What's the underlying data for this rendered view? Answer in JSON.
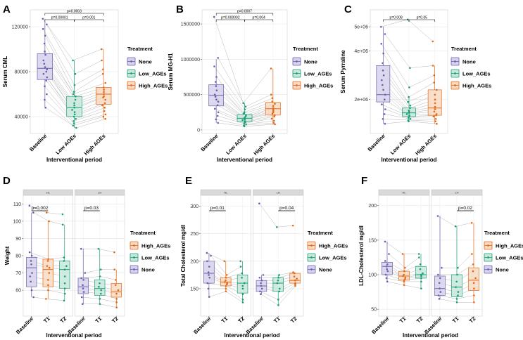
{
  "colors": {
    "None": "#6a5fb0",
    "Low_AGEs": "#1a9e77",
    "High_AGEs": "#e56a17",
    "None_fill": "#d6d2ec",
    "Low_AGEs_fill": "#c8e8dd",
    "High_AGEs_fill": "#f9d9c2"
  },
  "legend": {
    "title": "Treatment",
    "top_order": [
      "None",
      "Low_AGEs",
      "High_AGEs"
    ],
    "bottom_order": [
      "High_AGEs",
      "Low_AGEs",
      "None"
    ]
  },
  "chart_data": [
    {
      "panel": "A",
      "type": "box",
      "title": "",
      "xlabel": "Interventional period",
      "ylabel": "Serum CML",
      "categories": [
        "Baseline",
        "Low AGEs",
        "High AGEs"
      ],
      "groups": [
        "None",
        "Low_AGEs",
        "High_AGEs"
      ],
      "ylim": [
        25000,
        135000
      ],
      "yticks": [
        40000,
        80000,
        120000
      ],
      "ytick_labels": [
        "40000",
        "80000",
        "120000"
      ],
      "boxes": [
        [
          48000,
          73000,
          83000,
          96000,
          127000
        ],
        [
          30000,
          40000,
          48000,
          58000,
          90000
        ],
        [
          38000,
          51000,
          60000,
          66000,
          100000
        ]
      ],
      "points": [
        [
          127000,
          122000,
          118000,
          112000,
          105000,
          98000,
          95000,
          90000,
          87000,
          84000,
          82000,
          80000,
          78000,
          75000,
          72000,
          67000,
          60000,
          55000,
          48000
        ],
        [
          90000,
          78000,
          68000,
          62000,
          60000,
          58000,
          55000,
          52000,
          50000,
          48000,
          46000,
          44000,
          42000,
          40000,
          38000,
          36000,
          34000,
          32000,
          30000
        ],
        [
          100000,
          90000,
          82000,
          78000,
          70000,
          66000,
          64000,
          62000,
          60000,
          58000,
          57000,
          55000,
          52000,
          50000,
          48000,
          45000,
          42000,
          40000,
          38000
        ]
      ],
      "brackets": [
        {
          "from": 0,
          "to": 2,
          "label": "p=0.0003"
        },
        {
          "from": 0,
          "to": 1,
          "label": "p=0.00001"
        },
        {
          "from": 1,
          "to": 2,
          "label": "p=0.001"
        }
      ]
    },
    {
      "panel": "B",
      "type": "box",
      "title": "",
      "xlabel": "Interventional period",
      "ylabel": "Serum MG-H1",
      "categories": [
        "Baseline",
        "Low AGEs",
        "High AGEs"
      ],
      "groups": [
        "None",
        "Low_AGEs",
        "High_AGEs"
      ],
      "ylim": [
        -50000,
        1700000
      ],
      "yticks": [
        0,
        500000,
        1000000,
        1500000
      ],
      "ytick_labels": [
        "0",
        "500000",
        "1000000",
        "1500000"
      ],
      "boxes": [
        [
          100000,
          340000,
          490000,
          640000,
          1000000
        ],
        [
          50000,
          120000,
          165000,
          220000,
          380000
        ],
        [
          80000,
          210000,
          300000,
          390000,
          870000
        ]
      ],
      "points": [
        [
          1600000,
          1020000,
          900000,
          750000,
          680000,
          620000,
          560000,
          500000,
          470000,
          430000,
          400000,
          350000,
          300000,
          250000,
          200000,
          150000,
          100000
        ],
        [
          380000,
          330000,
          290000,
          250000,
          230000,
          210000,
          190000,
          175000,
          160000,
          150000,
          140000,
          125000,
          110000,
          95000,
          80000,
          65000,
          50000
        ],
        [
          870000,
          500000,
          450000,
          400000,
          370000,
          340000,
          310000,
          290000,
          270000,
          250000,
          230000,
          210000,
          190000,
          160000,
          130000,
          100000,
          80000
        ]
      ],
      "brackets": [
        {
          "from": 0,
          "to": 2,
          "label": "p=0.0007"
        },
        {
          "from": 0,
          "to": 1,
          "label": "p=0.000002"
        },
        {
          "from": 1,
          "to": 2,
          "label": "p=0.004"
        }
      ]
    },
    {
      "panel": "C",
      "type": "box",
      "title": "",
      "xlabel": "Interventional period",
      "ylabel": "Serum Pyrraline",
      "categories": [
        "Baseline",
        "Low AGEs",
        "High AGEs"
      ],
      "groups": [
        "None",
        "Low_AGEs",
        "High_AGEs"
      ],
      "ylim": [
        600000,
        5700000
      ],
      "yticks": [
        2000000,
        4000000,
        5000000
      ],
      "ytick_labels": [
        "2e+06",
        "4e+06",
        "5e+06"
      ],
      "boxes": [
        [
          1000000,
          1900000,
          2200000,
          3400000,
          5000000
        ],
        [
          1100000,
          1300000,
          1450000,
          1650000,
          2100000
        ],
        [
          1000000,
          1350000,
          1650000,
          2400000,
          3400000
        ]
      ],
      "points": [
        [
          5000000,
          4700000,
          4300000,
          3900000,
          3500000,
          3200000,
          3000000,
          2800000,
          2600000,
          2400000,
          2200000,
          2000000,
          1800000,
          1600000,
          1400000,
          1200000,
          1000000
        ],
        [
          5300000,
          3300000,
          2500000,
          2100000,
          1900000,
          1750000,
          1650000,
          1550000,
          1500000,
          1450000,
          1400000,
          1350000,
          1300000,
          1250000,
          1200000,
          1150000,
          1100000
        ],
        [
          4400000,
          3400000,
          3000000,
          2700000,
          2400000,
          2200000,
          2000000,
          1850000,
          1700000,
          1600000,
          1500000,
          1400000,
          1350000,
          1300000,
          1200000,
          1100000,
          1000000
        ]
      ],
      "brackets": [
        {
          "from": 0,
          "to": 1,
          "label": "p=0.008"
        },
        {
          "from": 1,
          "to": 2,
          "label": "p=0.05"
        }
      ]
    },
    {
      "panel": "D",
      "type": "box",
      "title": "",
      "xlabel": "Interventional period",
      "ylabel": "Weight",
      "facets": [
        "HL",
        "LH"
      ],
      "categories": [
        "Baseline",
        "T1",
        "T2"
      ],
      "groups": [
        "None",
        "High_AGEs",
        "Low_AGEs",
        "None",
        "Low_AGEs",
        "High_AGEs"
      ],
      "ylim": [
        45,
        115
      ],
      "yticks": [
        60,
        70,
        80,
        90,
        100,
        110
      ],
      "ytick_labels": [
        "60",
        "70",
        "80",
        "90",
        "100",
        "110"
      ],
      "boxes": [
        [
          [
            56,
            62,
            73,
            79,
            105
          ],
          [
            55,
            62,
            72,
            78,
            100
          ],
          [
            54,
            61,
            72,
            77,
            98
          ]
        ],
        [
          [
            52,
            58,
            62,
            67,
            84
          ],
          [
            52,
            57,
            61,
            66,
            84
          ],
          [
            50,
            56,
            59,
            64,
            72
          ]
        ]
      ],
      "points": [
        [
          [
            109,
            105,
            82,
            80,
            77,
            75,
            70,
            68,
            65,
            60,
            56
          ],
          [
            105,
            100,
            78,
            77,
            74,
            73,
            70,
            66,
            63,
            60,
            55
          ],
          [
            104,
            98,
            79,
            77,
            74,
            72,
            68,
            64,
            61,
            58,
            54
          ]
        ],
        [
          [
            84,
            70,
            67,
            66,
            63,
            61,
            59,
            56,
            52
          ],
          [
            84,
            72,
            68,
            64,
            62,
            60,
            58,
            55,
            52
          ],
          [
            82,
            72,
            66,
            63,
            60,
            58,
            55,
            53,
            50
          ]
        ]
      ],
      "brackets": [
        {
          "facet": 0,
          "from": 0,
          "to": 1,
          "label": "p=0.002"
        },
        {
          "facet": 1,
          "from": 0,
          "to": 1,
          "label": "p=0.03"
        }
      ]
    },
    {
      "panel": "E",
      "type": "box",
      "title": "",
      "xlabel": "Interventional period",
      "ylabel": "Total Cholesterol mg/dl",
      "facets": [
        "HL",
        "LH"
      ],
      "categories": [
        "Baseline",
        "T1",
        "T2"
      ],
      "groups": [
        "None",
        "High_AGEs",
        "Low_AGEs",
        "None",
        "Low_AGEs",
        "High_AGEs"
      ],
      "ylim": [
        100,
        320
      ],
      "yticks": [
        150,
        200,
        250,
        300
      ],
      "ytick_labels": [
        "150",
        "200",
        "250",
        "300"
      ],
      "boxes": [
        [
          [
            135,
            160,
            178,
            200,
            215
          ],
          [
            145,
            155,
            162,
            170,
            200
          ],
          [
            125,
            142,
            160,
            175,
            200
          ]
        ],
        [
          [
            140,
            145,
            155,
            165,
            175
          ],
          [
            120,
            145,
            160,
            170,
            175
          ],
          [
            155,
            160,
            165,
            178,
            180
          ]
        ]
      ],
      "points": [
        [
          [
            215,
            210,
            200,
            190,
            180,
            175,
            170,
            160,
            150,
            135
          ],
          [
            200,
            175,
            170,
            165,
            162,
            160,
            158,
            155,
            150,
            145
          ],
          [
            200,
            190,
            178,
            170,
            160,
            155,
            150,
            140,
            130,
            125
          ]
        ],
        [
          [
            305,
            175,
            170,
            165,
            160,
            155,
            150,
            145,
            140
          ],
          [
            262,
            175,
            170,
            165,
            160,
            150,
            145,
            130,
            120
          ],
          [
            265,
            180,
            178,
            172,
            168,
            165,
            160,
            158,
            155
          ]
        ]
      ],
      "brackets": [
        {
          "facet": 0,
          "from": 0,
          "to": 1,
          "label": "p=0.01"
        },
        {
          "facet": 1,
          "from": 1,
          "to": 2,
          "label": "p=0.04"
        }
      ]
    },
    {
      "panel": "F",
      "type": "box",
      "title": "",
      "xlabel": "Interventional period",
      "ylabel": "LDL-Cholesterol mg/dl",
      "facets": [
        "HL",
        "LH"
      ],
      "categories": [
        "Baseline",
        "T1",
        "T2"
      ],
      "groups": [
        "None",
        "High_AGEs",
        "Low_AGEs",
        "None",
        "Low_AGEs",
        "High_AGEs"
      ],
      "ylim": [
        40,
        215
      ],
      "yticks": [
        50,
        100,
        150,
        200
      ],
      "ytick_labels": [
        "50",
        "100",
        "150",
        "200"
      ],
      "boxes": [
        [
          [
            90,
            100,
            112,
            118,
            148
          ],
          [
            85,
            92,
            98,
            105,
            130
          ],
          [
            80,
            95,
            100,
            112,
            130
          ]
        ],
        [
          [
            65,
            70,
            80,
            98,
            185
          ],
          [
            60,
            68,
            82,
            100,
            170
          ],
          [
            60,
            77,
            92,
            110,
            175
          ]
        ]
      ],
      "points": [
        [
          [
            148,
            130,
            120,
            115,
            112,
            108,
            105,
            100,
            95,
            90
          ],
          [
            130,
            110,
            105,
            100,
            98,
            96,
            94,
            92,
            90,
            85
          ],
          [
            130,
            125,
            115,
            108,
            102,
            100,
            98,
            95,
            90,
            80
          ]
        ],
        [
          [
            185,
            110,
            100,
            95,
            88,
            80,
            75,
            70,
            65
          ],
          [
            170,
            110,
            100,
            90,
            82,
            75,
            70,
            65,
            60
          ],
          [
            175,
            130,
            115,
            105,
            95,
            88,
            80,
            70,
            60
          ]
        ]
      ],
      "brackets": [
        {
          "facet": 1,
          "from": 1,
          "to": 2,
          "label": "p=0.02"
        }
      ]
    }
  ]
}
